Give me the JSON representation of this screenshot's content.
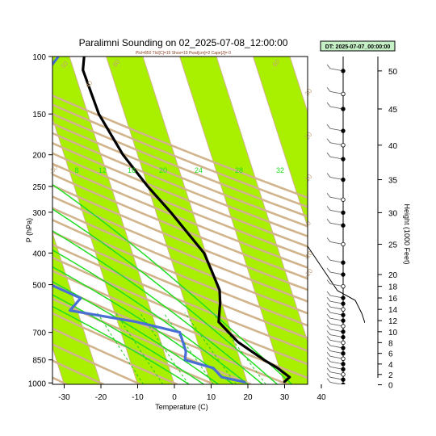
{
  "chart_data": {
    "type": "line",
    "title": "Paralimni Sounding on 02_2025-07-08_12:00:00",
    "subtitle": "Plcl=850 Tlcl[C]=15 Shox=10 Pwat[cm]=2 Cape[J]= 0",
    "datetime_label": "DT: 2025-07-07_00:00:00",
    "xlabel": "Temperature (C)",
    "ylabel": "P (hPa)",
    "y2label": "Height (1000 Feet)",
    "xlim": [
      -33,
      40
    ],
    "ylim": [
      1010,
      100
    ],
    "y_scale": "log",
    "x_ticks": [
      "-30",
      "-20",
      "-10",
      "0",
      "10",
      "20",
      "30",
      "40"
    ],
    "y_ticks": [
      "100",
      "150",
      "200",
      "250",
      "300",
      "400",
      "500",
      "700",
      "850",
      "1000"
    ],
    "height_ticks": [
      "0",
      "2",
      "4",
      "6",
      "8",
      "10",
      "12",
      "14",
      "16",
      "18",
      "20",
      "25",
      "30",
      "35",
      "40",
      "45",
      "50"
    ],
    "mixing_ratio_labels": [
      "8",
      "12",
      "16",
      "20",
      "24",
      "28",
      "32"
    ],
    "dry_adiabat_labels": [
      "50",
      "40",
      "30",
      "20",
      "10",
      "0",
      "-10",
      "-20",
      "-30",
      "80",
      "60"
    ],
    "series": [
      {
        "name": "",
        "color": "#000000",
        "points": [
          {
            "p": 995,
            "t": 30.0
          },
          {
            "p": 960,
            "t": 32.0
          },
          {
            "p": 900,
            "t": 29.5
          },
          {
            "p": 850,
            "t": 26.5
          },
          {
            "p": 750,
            "t": 21.0
          },
          {
            "p": 650,
            "t": 17.5
          },
          {
            "p": 570,
            "t": 19.5
          },
          {
            "p": 520,
            "t": 20.5
          },
          {
            "p": 450,
            "t": 20.0
          },
          {
            "p": 400,
            "t": 19.5
          },
          {
            "p": 300,
            "t": 14.0
          },
          {
            "p": 250,
            "t": 10.0
          },
          {
            "p": 200,
            "t": 6.0
          },
          {
            "p": 150,
            "t": 3.0
          },
          {
            "p": 110,
            "t": 2.5
          },
          {
            "p": 100,
            "t": 4.0
          }
        ]
      },
      {
        "name": "",
        "color": "#4a6fd4",
        "points": [
          {
            "p": 995,
            "t": 19.5
          },
          {
            "p": 960,
            "t": 13.5
          },
          {
            "p": 900,
            "t": 12.0
          },
          {
            "p": 850,
            "t": 5.0
          },
          {
            "p": 800,
            "t": 6.0
          },
          {
            "p": 700,
            "t": 6.0
          },
          {
            "p": 650,
            "t": -5.0
          },
          {
            "p": 600,
            "t": -22.0
          },
          {
            "p": 550,
            "t": -18.0
          },
          {
            "p": 500,
            "t": -25.0
          },
          {
            "p": 440,
            "t": -29.0
          },
          {
            "p": 400,
            "t": -27.0
          },
          {
            "p": 350,
            "t": -22.0
          },
          {
            "p": 300,
            "t": -20.0
          },
          {
            "p": 250,
            "t": -22.0
          },
          {
            "p": 200,
            "t": -23.0
          },
          {
            "p": 160,
            "t": -20.0
          },
          {
            "p": 130,
            "t": -15.0
          },
          {
            "p": 110,
            "t": -7.0
          },
          {
            "p": 100,
            "t": -3.0
          }
        ]
      }
    ],
    "wind_heights_kft": [
      0,
      1,
      2,
      3,
      4,
      5,
      6,
      7,
      8,
      9,
      10,
      11,
      12,
      13,
      14,
      15,
      16,
      18,
      20,
      22,
      25,
      28,
      30,
      32,
      35,
      38,
      40,
      42,
      45,
      47,
      50
    ]
  }
}
